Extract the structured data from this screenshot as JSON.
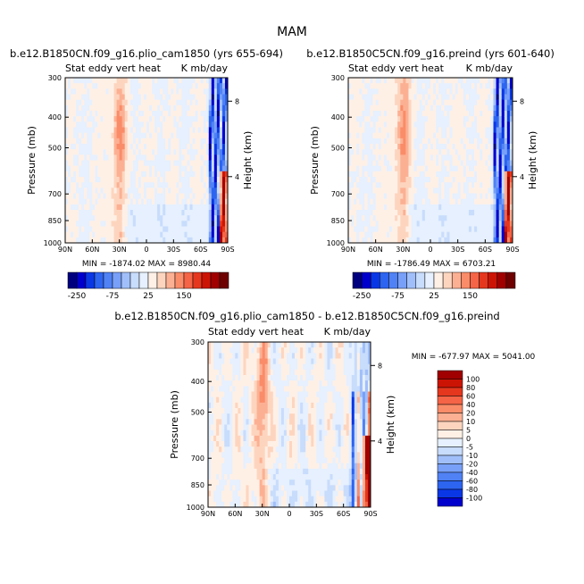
{
  "figure_title": "MAM",
  "chart_data": [
    {
      "type": "heatmap",
      "title": "b.e12.B1850CN.f09_g16.plio_cam1850 (yrs 655-694)",
      "subtitle_left": "Stat eddy vert heat",
      "subtitle_right": "K mb/day",
      "xlabel": "",
      "ylabel": "Pressure (mb)",
      "y2label": "Height (km)",
      "x_ticks": [
        "90N",
        "60N",
        "30N",
        "0",
        "30S",
        "60S",
        "90S"
      ],
      "y_ticks": [
        "300",
        "400",
        "500",
        "700",
        "850",
        "1000"
      ],
      "y_tick_values": [
        300,
        400,
        500,
        700,
        850,
        1000
      ],
      "y2_ticks": [
        "8",
        "4"
      ],
      "y2_tick_pressures": [
        356,
        617
      ],
      "stats": "MIN = -1874.02   MAX = 8980.44",
      "colorbar_labels": [
        "-250",
        "-75",
        "25",
        "150"
      ],
      "colorbar_colors": [
        "#00007f",
        "#0000cc",
        "#0a37e5",
        "#2d64f0",
        "#5082f5",
        "#78a0f8",
        "#a0bffa",
        "#c8dcfc",
        "#e6f0fe",
        "#fff0e6",
        "#fdd5bf",
        "#fcb093",
        "#fa8c69",
        "#f56446",
        "#e5371e",
        "#cc1405",
        "#a00000",
        "#6e0000"
      ]
    },
    {
      "type": "heatmap",
      "title": "b.e12.B1850C5CN.f09_g16.preind (yrs 601-640)",
      "subtitle_left": "Stat eddy vert heat",
      "subtitle_right": "K mb/day",
      "xlabel": "",
      "ylabel": "Pressure (mb)",
      "y2label": "Height (km)",
      "x_ticks": [
        "90N",
        "60N",
        "30N",
        "0",
        "30S",
        "60S",
        "90S"
      ],
      "y_ticks": [
        "300",
        "400",
        "500",
        "700",
        "850",
        "1000"
      ],
      "y_tick_values": [
        300,
        400,
        500,
        700,
        850,
        1000
      ],
      "y2_ticks": [
        "8",
        "4"
      ],
      "y2_tick_pressures": [
        356,
        617
      ],
      "stats": "MIN = -1786.49   MAX = 6703.21",
      "colorbar_labels": [
        "-250",
        "-75",
        "25",
        "150"
      ],
      "colorbar_colors": [
        "#00007f",
        "#0000cc",
        "#0a37e5",
        "#2d64f0",
        "#5082f5",
        "#78a0f8",
        "#a0bffa",
        "#c8dcfc",
        "#e6f0fe",
        "#fff0e6",
        "#fdd5bf",
        "#fcb093",
        "#fa8c69",
        "#f56446",
        "#e5371e",
        "#cc1405",
        "#a00000",
        "#6e0000"
      ]
    },
    {
      "type": "heatmap",
      "title": "b.e12.B1850CN.f09_g16.plio_cam1850 - b.e12.B1850C5CN.f09_g16.preind",
      "subtitle_left": "Stat eddy vert heat",
      "subtitle_right": "K mb/day",
      "xlabel": "",
      "ylabel": "Pressure (mb)",
      "y2label": "Height (km)",
      "x_ticks": [
        "90N",
        "60N",
        "30N",
        "0",
        "30S",
        "60S",
        "90S"
      ],
      "y_ticks": [
        "300",
        "400",
        "500",
        "700",
        "850",
        "1000"
      ],
      "y_tick_values": [
        300,
        400,
        500,
        700,
        850,
        1000
      ],
      "y2_ticks": [
        "8",
        "4"
      ],
      "y2_tick_pressures": [
        356,
        617
      ],
      "stats": "MIN = -677.97   MAX = 5041.00",
      "colorbar_labels": [
        "100",
        "80",
        "60",
        "40",
        "20",
        "10",
        "5",
        "0",
        "-5",
        "-10",
        "-20",
        "-40",
        "-60",
        "-80",
        "-100"
      ],
      "colorbar_colors": [
        "#a00000",
        "#cc1405",
        "#e5371e",
        "#f56446",
        "#fa8c69",
        "#fcb093",
        "#fdd5bf",
        "#fff0e6",
        "#e6f0fe",
        "#c8dcfc",
        "#a0bffa",
        "#78a0f8",
        "#5082f5",
        "#2d64f0",
        "#0a37e5",
        "#0000cc"
      ]
    }
  ]
}
